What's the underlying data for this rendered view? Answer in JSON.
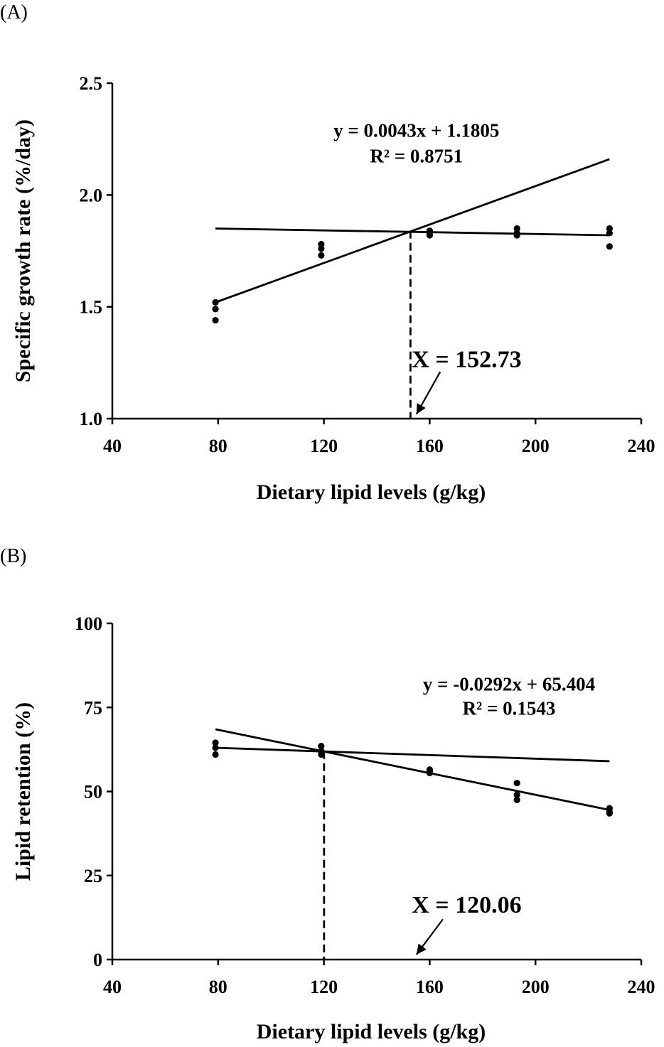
{
  "chart_data": [
    {
      "type": "scatter",
      "panel_label": "(A)",
      "xlabel": "Dietary lipid levels (g/kg)",
      "ylabel": "Specific growth rate (%/day)",
      "xlim": [
        40,
        240
      ],
      "ylim": [
        1.0,
        2.5
      ],
      "xticks": [
        "40",
        "80",
        "120",
        "160",
        "200",
        "240"
      ],
      "yticks": [
        "1.0",
        "1.5",
        "2.0",
        "2.5"
      ],
      "xtick_values": [
        40,
        80,
        120,
        160,
        200,
        240
      ],
      "ytick_values": [
        1.0,
        1.5,
        2.0,
        2.5
      ],
      "points": [
        {
          "x": 79,
          "y": 1.52
        },
        {
          "x": 79,
          "y": 1.49
        },
        {
          "x": 79,
          "y": 1.44
        },
        {
          "x": 119,
          "y": 1.78
        },
        {
          "x": 119,
          "y": 1.76
        },
        {
          "x": 119,
          "y": 1.73
        },
        {
          "x": 160,
          "y": 1.84
        },
        {
          "x": 160,
          "y": 1.83
        },
        {
          "x": 160,
          "y": 1.82
        },
        {
          "x": 193,
          "y": 1.85
        },
        {
          "x": 193,
          "y": 1.83
        },
        {
          "x": 193,
          "y": 1.82
        },
        {
          "x": 228,
          "y": 1.85
        },
        {
          "x": 228,
          "y": 1.83
        },
        {
          "x": 228,
          "y": 1.77
        }
      ],
      "lines": [
        {
          "x1": 79,
          "y1": 1.52,
          "x2": 228,
          "y2": 2.16,
          "style": "solid"
        },
        {
          "x1": 79,
          "y1": 1.85,
          "x2": 228,
          "y2": 1.82,
          "style": "solid"
        }
      ],
      "breakpoint_x": 152.73,
      "breakpoint_y": 1.84,
      "equation": "y = 0.0043x + 1.1805",
      "r_squared": "R² = 0.8751",
      "breakpoint_label": "X = 152.73",
      "equation_at": {
        "x": 155,
        "y": 2.26
      },
      "arrow_text_at": {
        "x": 174,
        "y": 1.23
      },
      "arrow_from": {
        "x": 164,
        "y": 1.21
      },
      "arrow_to": {
        "x": 155,
        "y": 1.02
      }
    },
    {
      "type": "scatter",
      "panel_label": "(B)",
      "xlabel": "Dietary lipid levels (g/kg)",
      "ylabel": "Lipid retention (%)",
      "xlim": [
        40,
        240
      ],
      "ylim": [
        0,
        100
      ],
      "xticks": [
        "40",
        "80",
        "120",
        "160",
        "200",
        "240"
      ],
      "yticks": [
        "0",
        "25",
        "50",
        "75",
        "100"
      ],
      "xtick_values": [
        40,
        80,
        120,
        160,
        200,
        240
      ],
      "ytick_values": [
        0,
        25,
        50,
        75,
        100
      ],
      "points": [
        {
          "x": 79,
          "y": 64.5
        },
        {
          "x": 79,
          "y": 63
        },
        {
          "x": 79,
          "y": 61
        },
        {
          "x": 119,
          "y": 63.5
        },
        {
          "x": 119,
          "y": 62
        },
        {
          "x": 119,
          "y": 61
        },
        {
          "x": 160,
          "y": 56.5
        },
        {
          "x": 160,
          "y": 56
        },
        {
          "x": 160,
          "y": 55.5
        },
        {
          "x": 193,
          "y": 52.5
        },
        {
          "x": 193,
          "y": 49
        },
        {
          "x": 193,
          "y": 47.5
        },
        {
          "x": 228,
          "y": 45
        },
        {
          "x": 228,
          "y": 44
        },
        {
          "x": 228,
          "y": 43.5
        }
      ],
      "lines": [
        {
          "x1": 79,
          "y1": 68.5,
          "x2": 228,
          "y2": 44.5,
          "style": "solid"
        },
        {
          "x1": 79,
          "y1": 63,
          "x2": 228,
          "y2": 59,
          "style": "solid"
        }
      ],
      "breakpoint_x": 120.06,
      "breakpoint_y": 62,
      "equation": "y = -0.0292x + 65.404",
      "r_squared": "R² = 0.1543",
      "breakpoint_label": "X = 120.06",
      "equation_at": {
        "x": 190,
        "y": 80
      },
      "arrow_text_at": {
        "x": 174,
        "y": 14
      },
      "arrow_from": {
        "x": 165,
        "y": 12
      },
      "arrow_to": {
        "x": 155,
        "y": 1.5
      }
    }
  ]
}
